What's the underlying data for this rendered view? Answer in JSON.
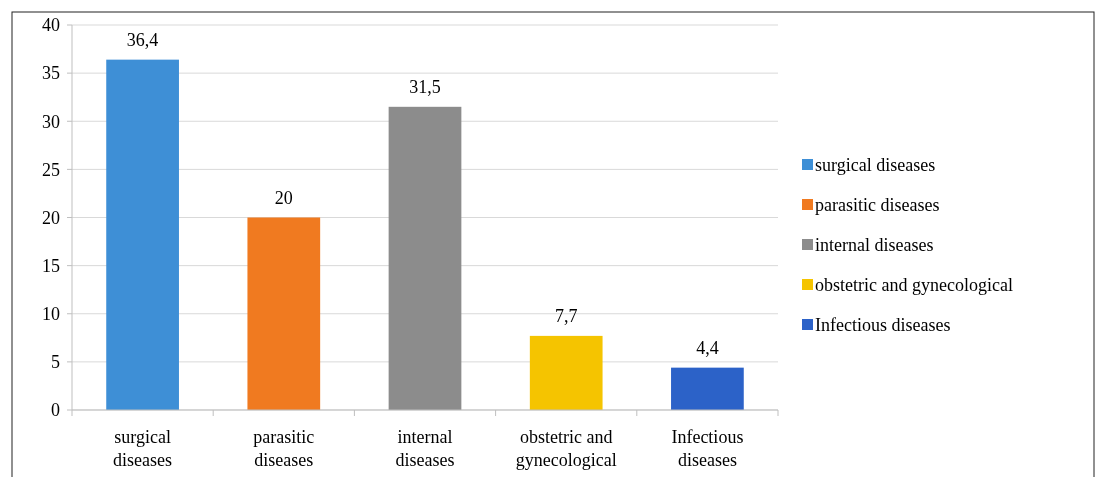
{
  "chart_data": {
    "type": "bar",
    "stacked": true,
    "categories": [
      "surgical diseases",
      "parasitic diseases",
      "internal diseases",
      "obstetric and gynecological",
      "Infectious diseases"
    ],
    "series": [
      {
        "name": "surgical diseases",
        "color": "#3e8fd6",
        "values": [
          36.4,
          null,
          null,
          null,
          null
        ],
        "value_labels": [
          "36,4",
          null,
          null,
          null,
          null
        ]
      },
      {
        "name": "parasitic diseases",
        "color": "#f07a20",
        "values": [
          null,
          20,
          null,
          null,
          null
        ],
        "value_labels": [
          null,
          "20",
          null,
          null,
          null
        ]
      },
      {
        "name": "internal diseases",
        "color": "#8c8c8c",
        "values": [
          null,
          null,
          31.5,
          null,
          null
        ],
        "value_labels": [
          null,
          null,
          "31,5",
          null,
          null
        ]
      },
      {
        "name": "obstetric and gynecological",
        "color": "#f5c400",
        "values": [
          null,
          null,
          null,
          7.7,
          null
        ],
        "value_labels": [
          null,
          null,
          null,
          "7,7",
          null
        ]
      },
      {
        "name": "Infectious diseases",
        "color": "#2c62c8",
        "values": [
          null,
          null,
          null,
          null,
          4.4
        ],
        "value_labels": [
          null,
          null,
          null,
          null,
          "4,4"
        ]
      }
    ],
    "ylim": [
      0,
      40
    ],
    "yticks": [
      0,
      5,
      10,
      15,
      20,
      25,
      30,
      35,
      40
    ],
    "grid": "y",
    "legend": "right"
  }
}
